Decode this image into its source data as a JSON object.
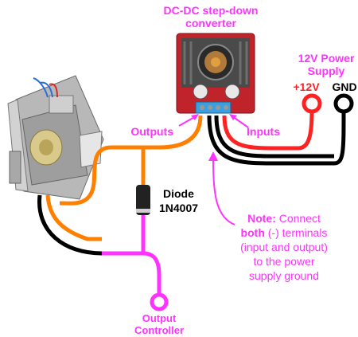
{
  "labels": {
    "converter_line1": "DC-DC step-down",
    "converter_line2": "converter",
    "supply_line1": "12V Power",
    "supply_line2": "Supply",
    "plus12v": "+12V",
    "gnd": "GND",
    "outputs": "Outputs",
    "inputs": "Inputs",
    "diode_line1": "Diode",
    "diode_line2": "1N4007",
    "note_prefix": "Note:",
    "note_l1_rest": " Connect",
    "note_l2_bold": "both",
    "note_l2_rest": " (-) terminals",
    "note_l3": "(input and output)",
    "note_l4": "to the power",
    "note_l5": "supply ground",
    "controller_line1": "Output",
    "controller_line2": "Controller"
  },
  "colors": {
    "magenta": "#ff33ff",
    "orange": "#ff8000",
    "red": "#ff2222",
    "black": "#000000",
    "pcb_red": "#c0242a",
    "heatsink": "#4a4a4a",
    "diode_body": "#222222"
  }
}
